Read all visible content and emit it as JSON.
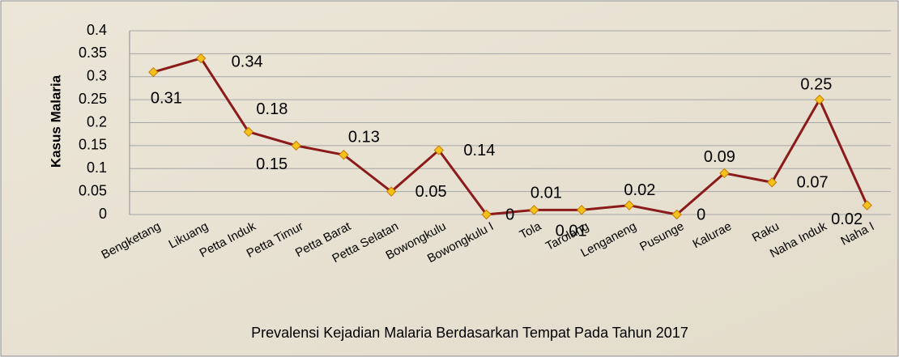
{
  "chart_data": {
    "type": "line",
    "title": "Prevalensi Kejadian Malaria Berdasarkan Tempat Pada Tahun 2017",
    "y_label": "Kasus Malaria",
    "categories": [
      "Bengketang",
      "Likuang",
      "Petta Induk",
      "Petta Timur",
      "Petta Barat",
      "Petta Selatan",
      "Bowongkulu",
      "Bowongkulu I",
      "Tola",
      "Tarolang",
      "Lenganeng",
      "Pusunge",
      "Kalurae",
      "Raku",
      "Naha Induk",
      "Naha I"
    ],
    "series": [
      {
        "name": "Kasus Malaria",
        "color": "#8b1a1a",
        "marker_color": "#f5c21b",
        "values": [
          0.31,
          0.34,
          0.18,
          0.15,
          0.13,
          0.05,
          0.14,
          0,
          0.01,
          0.01,
          0.02,
          0,
          0.09,
          0.07,
          0.25,
          0.02
        ]
      }
    ],
    "ylim": [
      0,
      0.4
    ],
    "yticks": [
      0,
      0.05,
      0.1,
      0.15,
      0.2,
      0.25,
      0.3,
      0.35,
      0.4
    ],
    "grid": true
  }
}
